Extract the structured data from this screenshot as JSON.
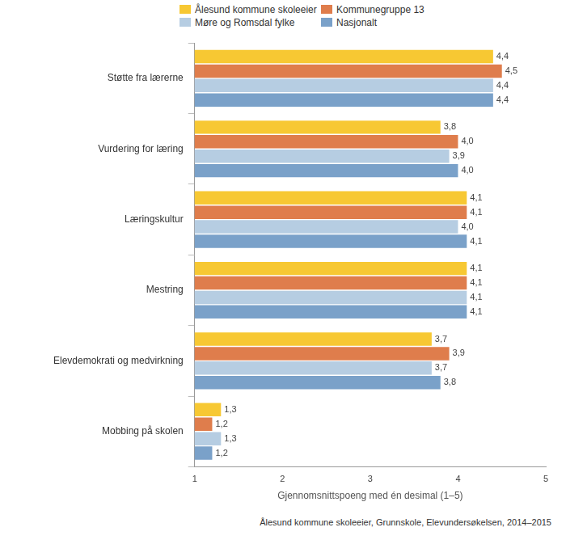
{
  "chart_data": {
    "type": "bar",
    "orientation": "horizontal",
    "categories": [
      "Støtte fra lærerne",
      "Vurdering for læring",
      "Læringskultur",
      "Mestring",
      "Elevdemokrati og medvirkning",
      "Mobbing på skolen"
    ],
    "series": [
      {
        "name": "Ålesund kommune skoleeier",
        "color": "#f7c833",
        "values": [
          4.4,
          3.8,
          4.1,
          4.1,
          3.7,
          1.3
        ],
        "value_labels": [
          "4,4",
          "3,8",
          "4,1",
          "4,1",
          "3,7",
          "1,3"
        ]
      },
      {
        "name": "Kommunegruppe 13",
        "color": "#df7d4c",
        "values": [
          4.5,
          4.0,
          4.1,
          4.1,
          3.9,
          1.2
        ],
        "value_labels": [
          "4,5",
          "4,0",
          "4,1",
          "4,1",
          "3,9",
          "1,2"
        ]
      },
      {
        "name": "Møre og Romsdal fylke",
        "color": "#b6cde2",
        "values": [
          4.4,
          3.9,
          4.0,
          4.1,
          3.7,
          1.3
        ],
        "value_labels": [
          "4,4",
          "3,9",
          "4,0",
          "4,1",
          "3,7",
          "1,3"
        ]
      },
      {
        "name": "Nasjonalt",
        "color": "#7aa1c9",
        "values": [
          4.4,
          4.0,
          4.1,
          4.1,
          3.8,
          1.2
        ],
        "value_labels": [
          "4,4",
          "4,0",
          "4,1",
          "4,1",
          "3,8",
          "1,2"
        ]
      }
    ],
    "xlabel": "Gjennomsnittspoeng med én desimal (1–5)",
    "xlim": [
      1,
      5
    ],
    "xticks": [
      1,
      2,
      3,
      4,
      5
    ],
    "grid": false,
    "legend": "top",
    "data_labels": true,
    "source": "Ålesund kommune skoleeier, Grunnskole, Elevundersøkelsen, 2014–2015"
  }
}
